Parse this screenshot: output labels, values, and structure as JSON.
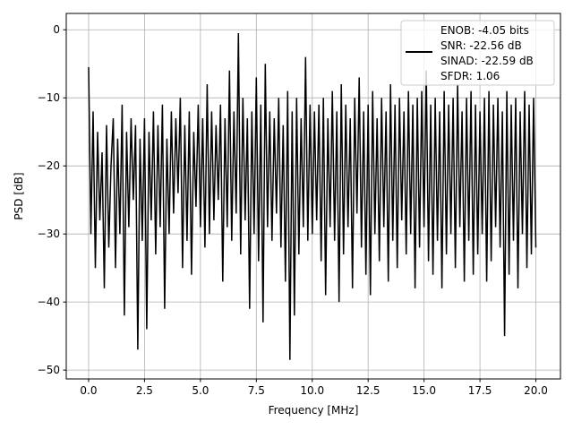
{
  "chart_data": {
    "type": "line",
    "title": "",
    "xlabel": "Frequency [MHz]",
    "ylabel": "PSD [dB]",
    "xlim": [
      -1.0,
      21.1
    ],
    "ylim": [
      -51.3,
      2.4
    ],
    "xticks": [
      0.0,
      2.5,
      5.0,
      7.5,
      10.0,
      12.5,
      15.0,
      17.5,
      20.0
    ],
    "xtick_labels": [
      "0.0",
      "2.5",
      "5.0",
      "7.5",
      "10.0",
      "12.5",
      "15.0",
      "17.5",
      "20.0"
    ],
    "yticks": [
      0,
      -10,
      -20,
      -30,
      -40,
      -50
    ],
    "ytick_labels": [
      "0",
      "−10",
      "−20",
      "−30",
      "−40",
      "−50"
    ],
    "grid": true,
    "legend": {
      "placement": "top-right",
      "entries": [
        "ENOB: -4.05 bits",
        "SNR: -22.56 dB",
        "SINAD: -22.59 dB",
        "SFDR: 1.06"
      ]
    },
    "series": [
      {
        "name": "PSD",
        "color": "#000000",
        "x_start": 0,
        "x_step": 0.1,
        "values": [
          -5.5,
          -30,
          -12,
          -35,
          -15,
          -28,
          -18,
          -38,
          -14,
          -32,
          -20,
          -13,
          -35,
          -16,
          -30,
          -11,
          -42,
          -15,
          -29,
          -13,
          -25,
          -14,
          -47,
          -16,
          -31,
          -13,
          -44,
          -15,
          -28,
          -12,
          -33,
          -14,
          -29,
          -11,
          -41,
          -16,
          -30,
          -12,
          -27,
          -13,
          -24,
          -10,
          -35,
          -14,
          -31,
          -12,
          -36,
          -15,
          -26,
          -11,
          -29,
          -13,
          -32,
          -8,
          -30,
          -12,
          -28,
          -14,
          -25,
          -11,
          -37,
          -13,
          -29,
          -6,
          -31,
          -12,
          -27,
          -0.5,
          -33,
          -10,
          -28,
          -13,
          -41,
          -12,
          -30,
          -7,
          -34,
          -11,
          -43,
          -5,
          -29,
          -12,
          -31,
          -13,
          -27,
          -10,
          -32,
          -14,
          -37,
          -9,
          -48.5,
          -12,
          -42,
          -10,
          -33,
          -13,
          -29,
          -4,
          -31,
          -11,
          -30,
          -12,
          -28,
          -11,
          -34,
          -10,
          -39,
          -13,
          -29,
          -9,
          -31,
          -12,
          -40,
          -8,
          -33,
          -11,
          -29,
          -13,
          -38,
          -10,
          -27,
          -7,
          -32,
          -12,
          -36,
          -11,
          -39,
          -9,
          -30,
          -13,
          -34,
          -10,
          -29,
          -12,
          -37,
          -8,
          -31,
          -11,
          -35,
          -10,
          -28,
          -12,
          -33,
          -9,
          -30,
          -11,
          -38,
          -10,
          -32,
          -9,
          -29,
          -6,
          -34,
          -11,
          -36,
          -10,
          -31,
          -12,
          -38,
          -9,
          -33,
          -11,
          -30,
          -10,
          -35,
          -8,
          -29,
          -12,
          -37,
          -10,
          -31,
          -9,
          -36,
          -11,
          -33,
          -12,
          -30,
          -10,
          -37,
          -9,
          -34,
          -11,
          -29,
          -10,
          -32,
          -12,
          -45,
          -9,
          -36,
          -11,
          -31,
          -10,
          -38,
          -12,
          -30,
          -9,
          -35,
          -11,
          -33,
          -10,
          -32
        ]
      }
    ]
  }
}
